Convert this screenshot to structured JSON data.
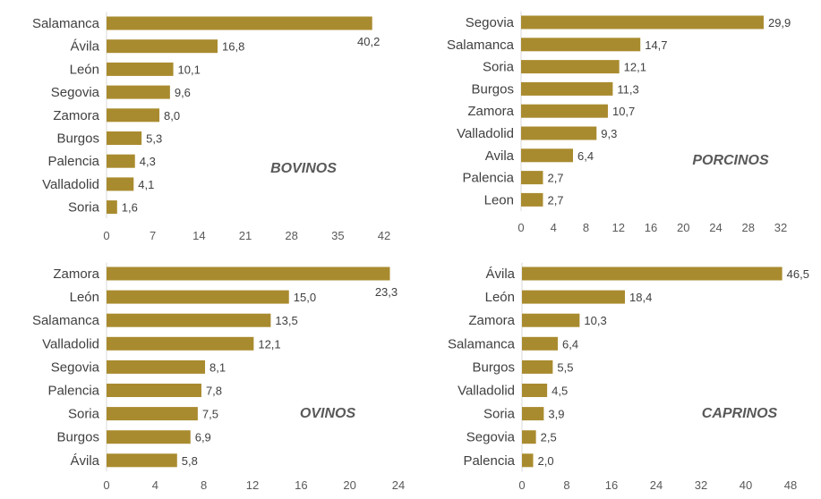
{
  "bar_color": "#A98B2F",
  "chart_data": [
    {
      "type": "bar",
      "orientation": "horizontal",
      "title": "BOVINOS",
      "categories": [
        "Salamanca",
        "Ávila",
        "León",
        "Segovia",
        "Zamora",
        "Burgos",
        "Palencia",
        "Valladolid",
        "Soria"
      ],
      "values": [
        40.2,
        16.8,
        10.1,
        9.6,
        8.0,
        5.3,
        4.3,
        4.1,
        1.6
      ],
      "value_labels": [
        "40,2",
        "16,8",
        "10,1",
        "9,6",
        "8,0",
        "5,3",
        "4,3",
        "4,1",
        "1,6"
      ],
      "xlim": [
        0,
        42
      ],
      "xticks": [
        "0",
        "7",
        "14",
        "21",
        "28",
        "35",
        "42"
      ],
      "grid": false
    },
    {
      "type": "bar",
      "orientation": "horizontal",
      "title": "PORCINOS",
      "categories": [
        "Segovia",
        "Salamanca",
        "Soria",
        "Burgos",
        "Zamora",
        "Valladolid",
        "Avila",
        "Palencia",
        "Leon"
      ],
      "values": [
        29.9,
        14.7,
        12.1,
        11.3,
        10.7,
        9.3,
        6.4,
        2.7,
        2.7
      ],
      "value_labels": [
        "29,9",
        "14,7",
        "12,1",
        "11,3",
        "10,7",
        "9,3",
        "6,4",
        "2,7",
        "2,7"
      ],
      "xlim": [
        0,
        32
      ],
      "xticks": [
        "0",
        "4",
        "8",
        "12",
        "16",
        "20",
        "24",
        "28",
        "32"
      ],
      "grid": false
    },
    {
      "type": "bar",
      "orientation": "horizontal",
      "title": "OVINOS",
      "categories": [
        "Zamora",
        "León",
        "Salamanca",
        "Valladolid",
        "Segovia",
        "Palencia",
        "Soria",
        "Burgos",
        "Ávila"
      ],
      "values": [
        23.3,
        15.0,
        13.5,
        12.1,
        8.1,
        7.8,
        7.5,
        6.9,
        5.8
      ],
      "value_labels": [
        "23,3",
        "15,0",
        "13,5",
        "12,1",
        "8,1",
        "7,8",
        "7,5",
        "6,9",
        "5,8"
      ],
      "xlim": [
        0,
        24
      ],
      "xticks": [
        "0",
        "4",
        "8",
        "12",
        "16",
        "20",
        "24"
      ],
      "grid": false
    },
    {
      "type": "bar",
      "orientation": "horizontal",
      "title": "CAPRINOS",
      "categories": [
        "Ávila",
        "León",
        "Zamora",
        "Salamanca",
        "Burgos",
        "Valladolid",
        "Soria",
        "Segovia",
        "Palencia"
      ],
      "values": [
        46.5,
        18.4,
        10.3,
        6.4,
        5.5,
        4.5,
        3.9,
        2.5,
        2.0
      ],
      "value_labels": [
        "46,5",
        "18,4",
        "10,3",
        "6,4",
        "5,5",
        "4,5",
        "3,9",
        "2,5",
        "2,0"
      ],
      "xlim": [
        0,
        48
      ],
      "xticks": [
        "0",
        "8",
        "16",
        "24",
        "32",
        "40",
        "48"
      ],
      "grid": false
    }
  ]
}
